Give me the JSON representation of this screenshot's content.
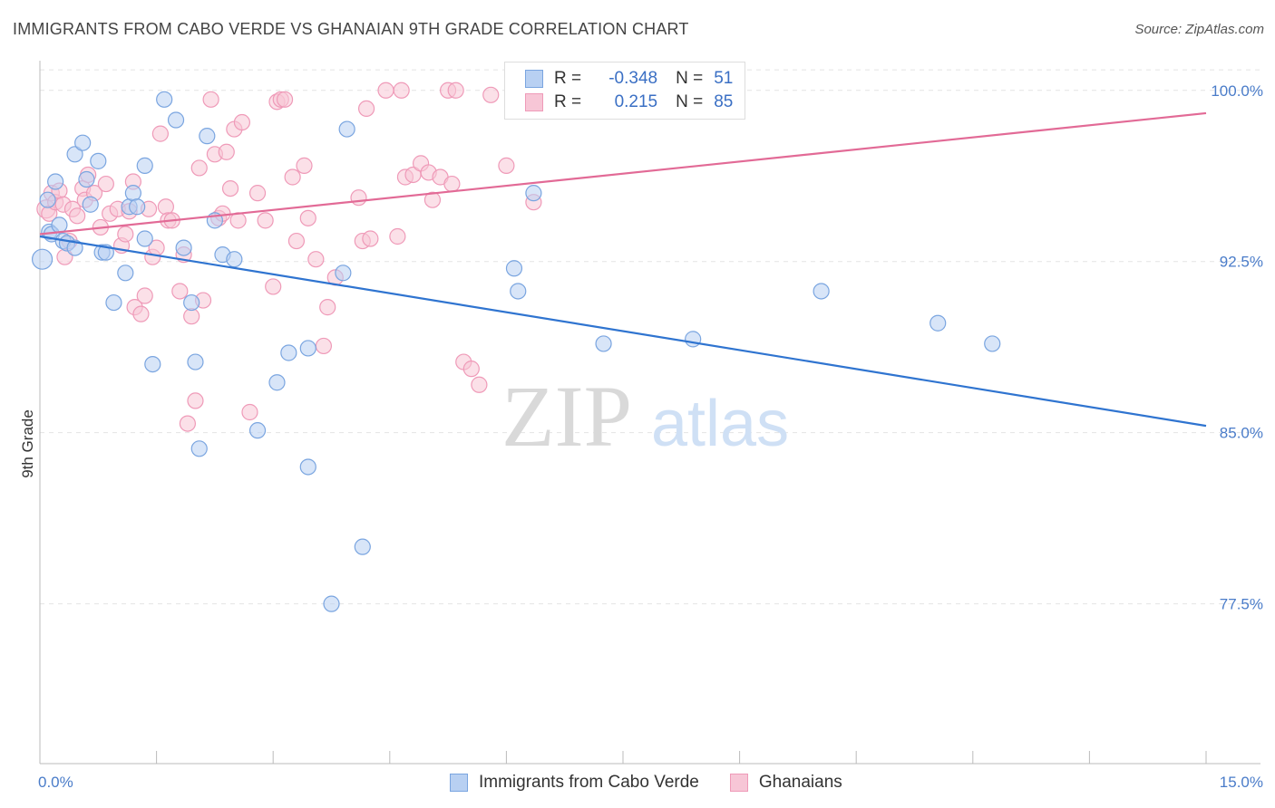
{
  "header": {
    "title": "IMMIGRANTS FROM CABO VERDE VS GHANAIAN 9TH GRADE CORRELATION CHART",
    "source": "Source: ZipAtlas.com"
  },
  "legend": {
    "series1": {
      "r_label": "R =",
      "r_value": "-0.348",
      "n_label": "N =",
      "n_value": "51"
    },
    "series2": {
      "r_label": "R =",
      "r_value": "0.215",
      "n_label": "N =",
      "n_value": "85"
    }
  },
  "watermark": {
    "part1": "ZIP",
    "part2": "atlas"
  },
  "colors": {
    "blue_fill": "#b8d0f2",
    "blue_stroke": "#7aa5e0",
    "blue_line": "#2f74d0",
    "pink_fill": "#f7c6d6",
    "pink_stroke": "#ef9ab8",
    "pink_line": "#e26a96",
    "axis_text": "#4a7cc9"
  },
  "chart_data": {
    "type": "scatter",
    "title": "IMMIGRANTS FROM CABO VERDE VS GHANAIAN 9TH GRADE CORRELATION CHART",
    "xlabel": "",
    "ylabel": "9th Grade",
    "xlim": [
      0,
      15
    ],
    "ylim": [
      70.5,
      101.3
    ],
    "x_tick_labels": [
      "0.0%",
      "15.0%"
    ],
    "y_ticks": [
      77.5,
      85.0,
      92.5,
      100.0
    ],
    "y_tick_labels": [
      "77.5%",
      "85.0%",
      "92.5%",
      "100.0%"
    ],
    "grid": true,
    "legend_position": "top-center",
    "series": [
      {
        "name": "Immigrants from Cabo Verde",
        "color": "blue",
        "trend": {
          "x": [
            0,
            15
          ],
          "y": [
            93.6,
            85.3
          ]
        },
        "points": [
          [
            0.03,
            92.6
          ],
          [
            0.1,
            95.2
          ],
          [
            0.12,
            93.8
          ],
          [
            0.15,
            93.7
          ],
          [
            0.25,
            94.1
          ],
          [
            0.3,
            93.4
          ],
          [
            0.35,
            93.3
          ],
          [
            0.45,
            93.1
          ],
          [
            0.45,
            97.2
          ],
          [
            0.55,
            97.7
          ],
          [
            0.6,
            96.1
          ],
          [
            0.65,
            95.0
          ],
          [
            0.75,
            96.9
          ],
          [
            0.8,
            92.9
          ],
          [
            0.85,
            92.9
          ],
          [
            0.95,
            90.7
          ],
          [
            1.1,
            92.0
          ],
          [
            1.15,
            94.9
          ],
          [
            1.2,
            95.5
          ],
          [
            1.25,
            94.9
          ],
          [
            1.35,
            96.7
          ],
          [
            1.35,
            93.5
          ],
          [
            1.45,
            88.0
          ],
          [
            1.6,
            99.6
          ],
          [
            1.75,
            98.7
          ],
          [
            1.85,
            93.1
          ],
          [
            1.95,
            90.7
          ],
          [
            2.0,
            88.1
          ],
          [
            2.05,
            84.3
          ],
          [
            2.15,
            98.0
          ],
          [
            2.25,
            94.3
          ],
          [
            2.35,
            92.8
          ],
          [
            2.5,
            92.6
          ],
          [
            2.8,
            85.1
          ],
          [
            3.05,
            87.2
          ],
          [
            3.2,
            88.5
          ],
          [
            3.45,
            88.7
          ],
          [
            3.45,
            83.5
          ],
          [
            3.75,
            77.5
          ],
          [
            3.9,
            92.0
          ],
          [
            3.95,
            98.3
          ],
          [
            4.15,
            80.0
          ],
          [
            6.1,
            92.2
          ],
          [
            6.15,
            91.2
          ],
          [
            6.35,
            95.5
          ],
          [
            7.25,
            88.9
          ],
          [
            8.4,
            89.1
          ],
          [
            10.05,
            91.2
          ],
          [
            11.55,
            89.8
          ],
          [
            12.25,
            88.9
          ],
          [
            0.2,
            96.0
          ]
        ]
      },
      {
        "name": "Ghanaians",
        "color": "pink",
        "trend": {
          "x": [
            0,
            15
          ],
          "y": [
            93.7,
            99.0
          ]
        },
        "points": [
          [
            0.08,
            94.8
          ],
          [
            0.12,
            94.6
          ],
          [
            0.15,
            95.5
          ],
          [
            0.2,
            95.1
          ],
          [
            0.25,
            95.6
          ],
          [
            0.3,
            95.0
          ],
          [
            0.32,
            92.7
          ],
          [
            0.38,
            93.4
          ],
          [
            0.42,
            94.8
          ],
          [
            0.48,
            94.5
          ],
          [
            0.55,
            95.7
          ],
          [
            0.58,
            95.2
          ],
          [
            0.62,
            96.3
          ],
          [
            0.7,
            95.5
          ],
          [
            0.78,
            94.0
          ],
          [
            0.85,
            95.9
          ],
          [
            0.9,
            94.6
          ],
          [
            1.0,
            94.8
          ],
          [
            1.05,
            93.2
          ],
          [
            1.1,
            93.7
          ],
          [
            1.15,
            94.7
          ],
          [
            1.2,
            96.0
          ],
          [
            1.22,
            90.5
          ],
          [
            1.3,
            90.2
          ],
          [
            1.35,
            91.0
          ],
          [
            1.4,
            94.8
          ],
          [
            1.45,
            92.7
          ],
          [
            1.5,
            93.1
          ],
          [
            1.55,
            98.1
          ],
          [
            1.62,
            94.9
          ],
          [
            1.65,
            94.3
          ],
          [
            1.7,
            94.3
          ],
          [
            1.8,
            91.2
          ],
          [
            1.85,
            92.8
          ],
          [
            1.9,
            85.4
          ],
          [
            1.95,
            90.1
          ],
          [
            2.0,
            86.4
          ],
          [
            2.05,
            96.6
          ],
          [
            2.1,
            90.8
          ],
          [
            2.2,
            99.6
          ],
          [
            2.25,
            97.2
          ],
          [
            2.3,
            94.4
          ],
          [
            2.35,
            94.6
          ],
          [
            2.4,
            97.3
          ],
          [
            2.45,
            95.7
          ],
          [
            2.5,
            98.3
          ],
          [
            2.55,
            94.3
          ],
          [
            2.6,
            98.6
          ],
          [
            2.7,
            85.9
          ],
          [
            2.8,
            95.5
          ],
          [
            2.9,
            94.3
          ],
          [
            3.0,
            91.4
          ],
          [
            3.05,
            99.5
          ],
          [
            3.1,
            99.6
          ],
          [
            3.15,
            99.6
          ],
          [
            3.25,
            96.2
          ],
          [
            3.3,
            93.4
          ],
          [
            3.4,
            96.7
          ],
          [
            3.45,
            94.4
          ],
          [
            3.55,
            92.6
          ],
          [
            3.65,
            88.8
          ],
          [
            3.7,
            90.5
          ],
          [
            3.8,
            91.8
          ],
          [
            4.1,
            95.3
          ],
          [
            4.15,
            93.4
          ],
          [
            4.2,
            99.2
          ],
          [
            4.25,
            93.5
          ],
          [
            4.45,
            100.0
          ],
          [
            4.6,
            93.6
          ],
          [
            4.65,
            100.0
          ],
          [
            4.7,
            96.2
          ],
          [
            4.8,
            96.3
          ],
          [
            4.9,
            96.8
          ],
          [
            5.0,
            96.4
          ],
          [
            5.05,
            95.2
          ],
          [
            5.15,
            96.2
          ],
          [
            5.25,
            100.0
          ],
          [
            5.35,
            100.0
          ],
          [
            5.3,
            95.9
          ],
          [
            5.45,
            88.1
          ],
          [
            5.55,
            87.8
          ],
          [
            5.65,
            87.1
          ],
          [
            5.8,
            99.8
          ],
          [
            6.0,
            96.7
          ],
          [
            6.35,
            95.1
          ]
        ]
      }
    ]
  },
  "bottom_legend": {
    "items": [
      {
        "label": "Immigrants from Cabo Verde"
      },
      {
        "label": "Ghanaians"
      }
    ]
  }
}
